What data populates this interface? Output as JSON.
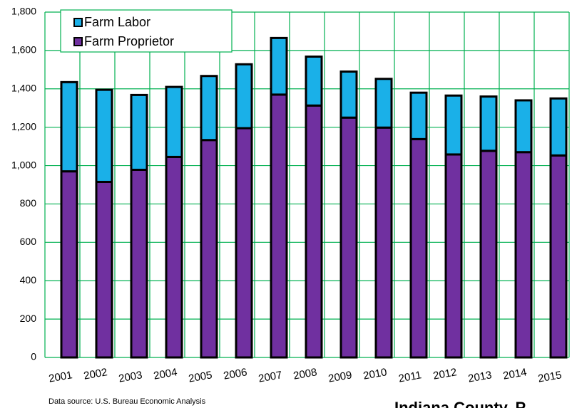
{
  "chart_data": {
    "type": "stacked_bar",
    "categories": [
      "2001",
      "2002",
      "2003",
      "2004",
      "2005",
      "2006",
      "2007",
      "2008",
      "2009",
      "2010",
      "2011",
      "2012",
      "2013",
      "2014",
      "2015"
    ],
    "series": [
      {
        "name": "Farm Proprietor",
        "color": "#7030a0",
        "values": [
          970,
          915,
          978,
          1045,
          1133,
          1195,
          1370,
          1313,
          1250,
          1198,
          1138,
          1058,
          1077,
          1070,
          1053
        ]
      },
      {
        "name": "Farm Labor",
        "color": "#1ab0e8",
        "values": [
          465,
          480,
          390,
          365,
          334,
          333,
          295,
          255,
          240,
          254,
          242,
          307,
          283,
          270,
          297
        ]
      }
    ],
    "ylim": [
      0,
      1800
    ],
    "yticks": [
      0,
      200,
      400,
      600,
      800,
      {
        "value": 1000,
        "label": "1,000"
      },
      {
        "value": 1200,
        "label": "1,200"
      },
      {
        "value": 1400,
        "label": "1,400"
      },
      {
        "value": 1600,
        "label": "1,600"
      },
      {
        "value": 1800,
        "label": "1,800"
      }
    ],
    "grid": true,
    "legend": "top-left",
    "annotations": [
      "Data source: U.S. Bureau Economic Analysis",
      "Indiana County, P"
    ]
  }
}
